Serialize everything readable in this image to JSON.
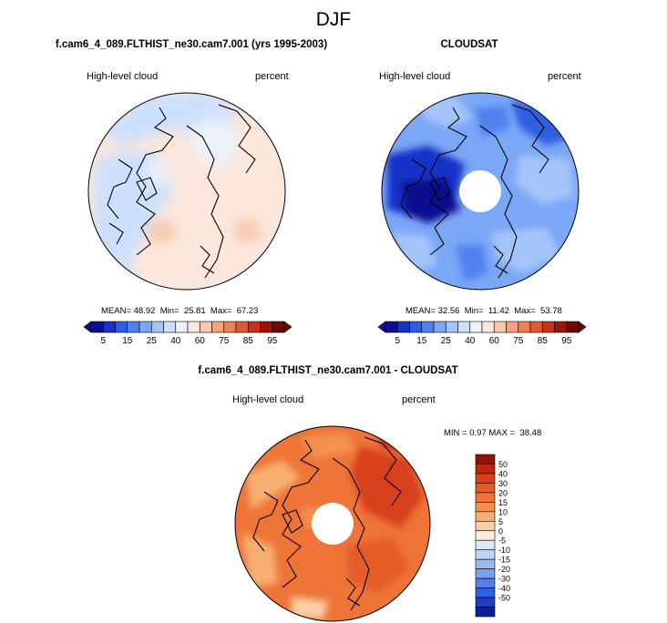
{
  "season": "DJF",
  "panels": {
    "model": {
      "title": "f.cam6_4_089.FLTHIST_ne30.cam7.001 (yrs 1995-2003)",
      "variable": "High-level cloud",
      "units": "percent",
      "stats": {
        "mean_label": "MEAN=",
        "mean": "48.92",
        "min_label": "Min=",
        "min": "25.81",
        "max_label": "Max=",
        "max": "67.23"
      }
    },
    "obs": {
      "title": "CLOUDSAT",
      "variable": "High-level cloud",
      "units": "percent",
      "stats": {
        "mean_label": "MEAN=",
        "mean": "32.56",
        "min_label": "Min=",
        "min": "11.42",
        "max_label": "Max=",
        "max": "53.78"
      }
    },
    "diff": {
      "title": "f.cam6_4_089.FLTHIST_ne30.cam7.001 - CLOUDSAT",
      "variable": "High-level cloud",
      "units": "percent",
      "stats": {
        "min_label": "MIN =",
        "min": "0.97",
        "max_label": "MAX =",
        "max": "38.48"
      }
    }
  },
  "chart_data": [
    {
      "type": "heatmap",
      "projection": "north polar stereographic",
      "title": "f.cam6_4_089.FLTHIST_ne30.cam7.001 (yrs 1995-2003)",
      "variable": "High-level cloud",
      "units": "percent",
      "mean": 48.92,
      "min": 25.81,
      "max": 67.23,
      "colorbar": {
        "orientation": "horizontal",
        "ticks": [
          "5",
          "15",
          "25",
          "40",
          "60",
          "75",
          "85",
          "95"
        ],
        "colors": [
          "#08108f",
          "#1732c8",
          "#2e5fe0",
          "#4f82ee",
          "#7aa7f6",
          "#a4c5fa",
          "#cde0fb",
          "#ecf2fb",
          "#fbe7dc",
          "#f8c9ad",
          "#f4a57f",
          "#ef7f55",
          "#e4582f",
          "#c9311a",
          "#9c150c",
          "#6e0a05"
        ]
      }
    },
    {
      "type": "heatmap",
      "projection": "north polar stereographic",
      "title": "CLOUDSAT",
      "variable": "High-level cloud",
      "units": "percent",
      "mean": 32.56,
      "min": 11.42,
      "max": 53.78,
      "colorbar": {
        "orientation": "horizontal",
        "ticks": [
          "5",
          "15",
          "25",
          "40",
          "60",
          "75",
          "85",
          "95"
        ],
        "colors": [
          "#08108f",
          "#1732c8",
          "#2e5fe0",
          "#4f82ee",
          "#7aa7f6",
          "#a4c5fa",
          "#cde0fb",
          "#ecf2fb",
          "#fbe7dc",
          "#f8c9ad",
          "#f4a57f",
          "#ef7f55",
          "#e4582f",
          "#c9311a",
          "#9c150c",
          "#6e0a05"
        ]
      }
    },
    {
      "type": "heatmap",
      "projection": "north polar stereographic",
      "title": "f.cam6_4_089.FLTHIST_ne30.cam7.001 - CLOUDSAT",
      "variable": "High-level cloud",
      "units": "percent",
      "min": 0.97,
      "max": 38.48,
      "colorbar": {
        "orientation": "vertical",
        "ticks": [
          "50",
          "40",
          "30",
          "20",
          "15",
          "10",
          "5",
          "0",
          "-5",
          "-10",
          "-15",
          "-20",
          "-30",
          "-40",
          "-50"
        ],
        "colors": [
          "#8c1408",
          "#bb2a0f",
          "#d7411a",
          "#e55b27",
          "#ee7438",
          "#f3924f",
          "#f7af71",
          "#fbcfa5",
          "#fdebdc",
          "#dde8f7",
          "#bdd3f4",
          "#9bbbf0",
          "#779fea",
          "#5280e3",
          "#2f5fdb",
          "#1a3dcc",
          "#0d1d9e"
        ]
      }
    }
  ]
}
